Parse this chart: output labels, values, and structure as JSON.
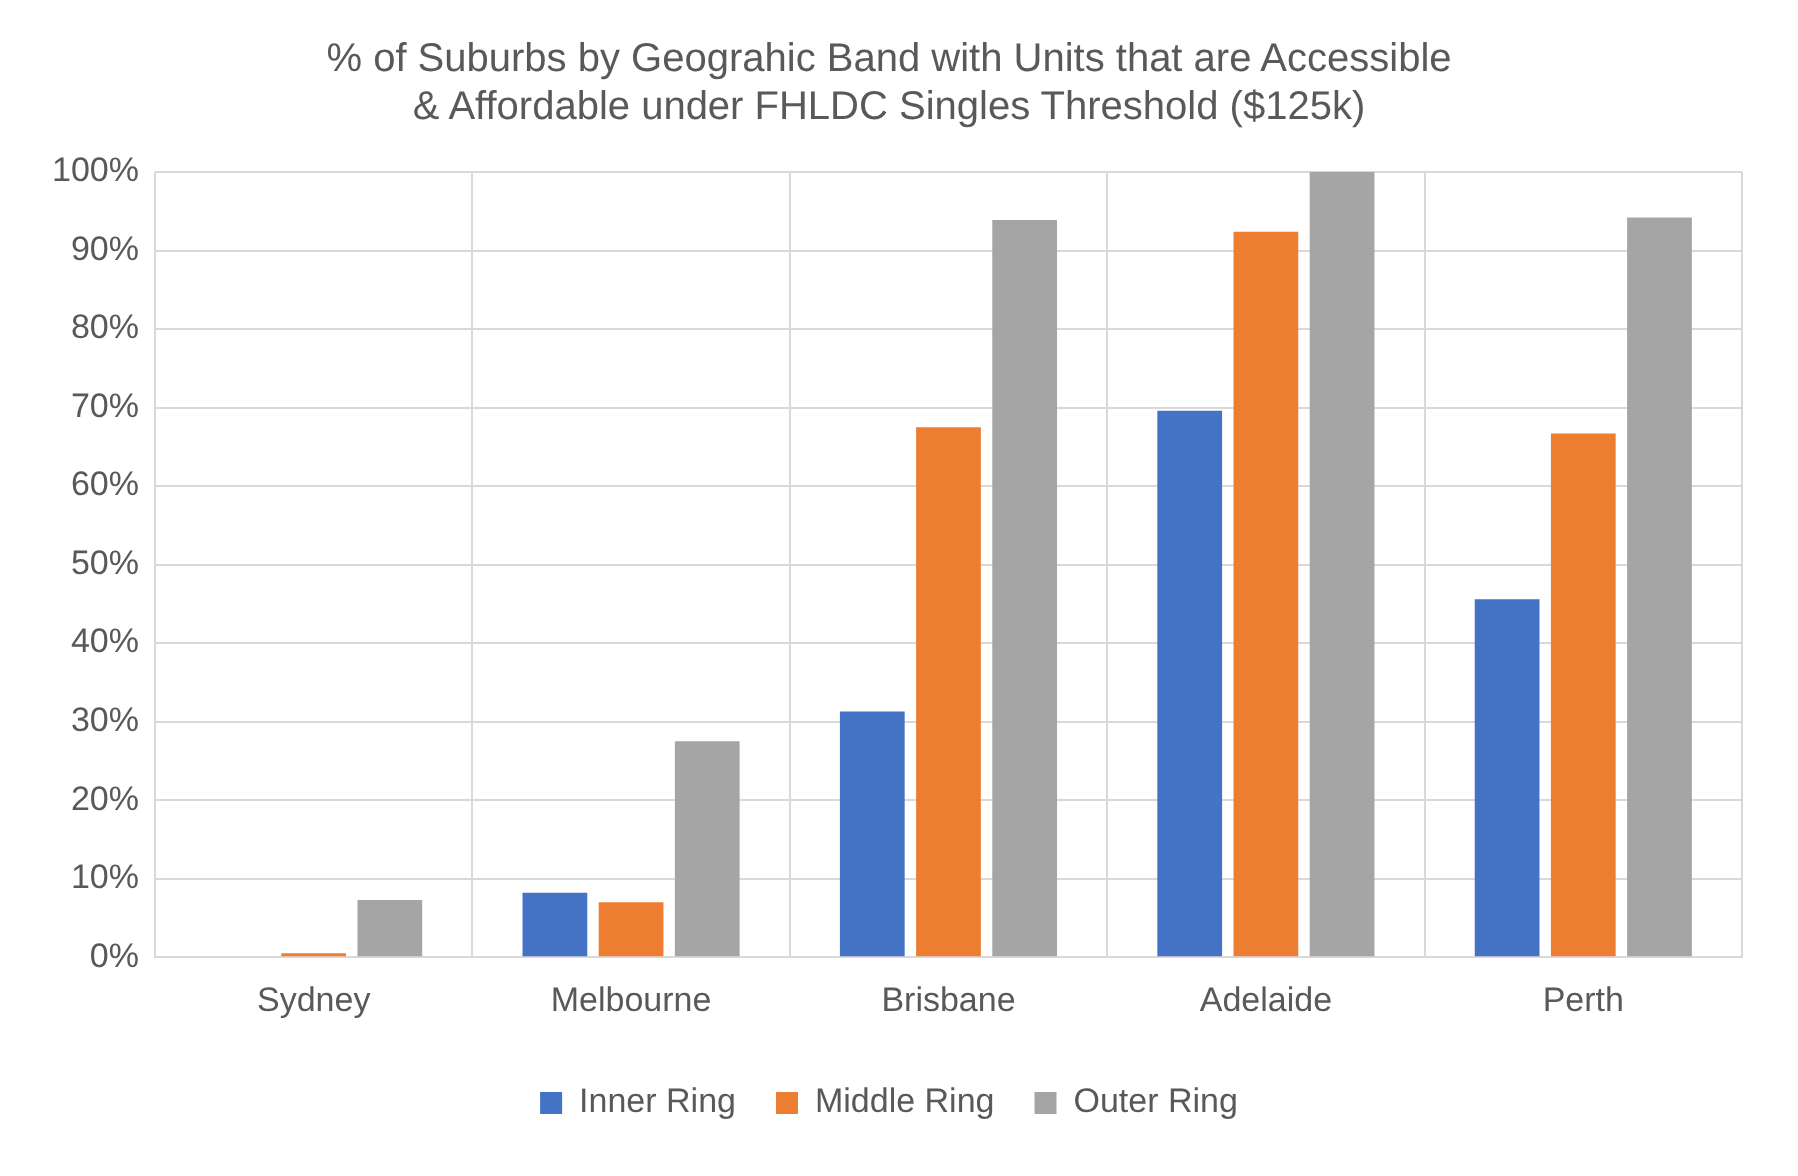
{
  "chart_data": {
    "type": "bar",
    "title": "% of Suburbs by Geograhic Band with Units that are Accessible & Affordable under FHLDC Singles Threshold ($125k)",
    "categories": [
      "Sydney",
      "Melbourne",
      "Brisbane",
      "Adelaide",
      "Perth"
    ],
    "series": [
      {
        "name": "Inner Ring",
        "color": "#4472c4",
        "values": [
          0,
          8.2,
          31.3,
          69.6,
          45.6
        ]
      },
      {
        "name": "Middle Ring",
        "color": "#ed7d31",
        "values": [
          0.5,
          7,
          67.5,
          92.4,
          66.7
        ]
      },
      {
        "name": "Outer Ring",
        "color": "#a5a5a5",
        "values": [
          7.3,
          27.5,
          93.9,
          100,
          94.2
        ]
      }
    ],
    "ylim": [
      0,
      100
    ],
    "yticks": [
      {
        "value": 0,
        "label": "0%"
      },
      {
        "value": 10,
        "label": "10%"
      },
      {
        "value": 20,
        "label": "20%"
      },
      {
        "value": 30,
        "label": "30%"
      },
      {
        "value": 40,
        "label": "40%"
      },
      {
        "value": 50,
        "label": "50%"
      },
      {
        "value": 60,
        "label": "60%"
      },
      {
        "value": 70,
        "label": "70%"
      },
      {
        "value": 80,
        "label": "80%"
      },
      {
        "value": 90,
        "label": "90%"
      },
      {
        "value": 100,
        "label": "100%"
      }
    ],
    "grid": true,
    "legend": "bottom"
  }
}
